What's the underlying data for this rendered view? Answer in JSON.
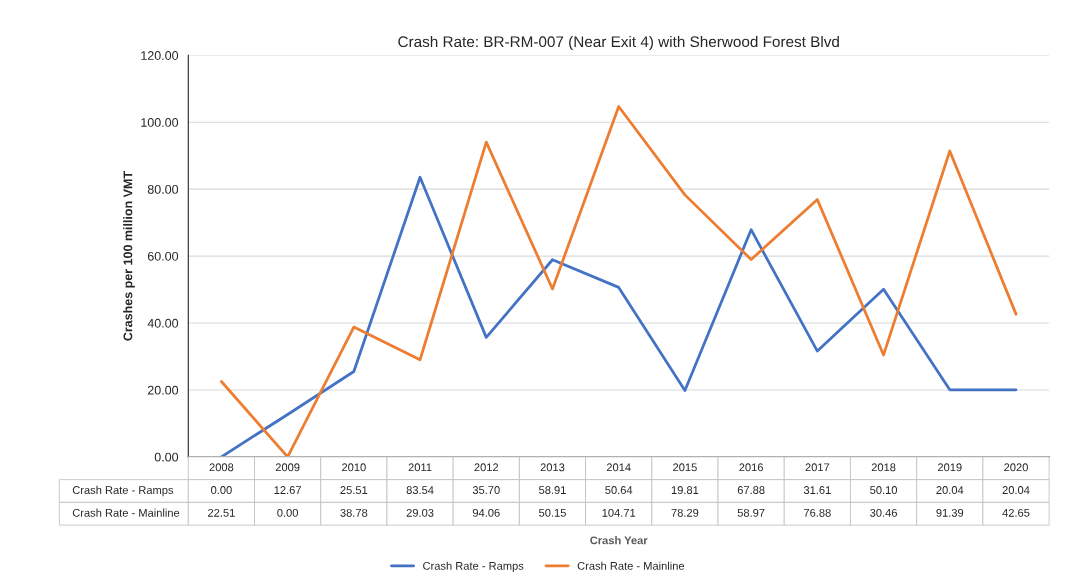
{
  "chart_data": {
    "type": "line",
    "title": "Crash Rate: BR-RM-007 (Near Exit 4) with Sherwood Forest Blvd",
    "annotations": [
      "Crash Year"
    ],
    "ylabel": "Crashes per 100 million VMT",
    "categories": [
      "2008",
      "2009",
      "2010",
      "2011",
      "2012",
      "2013",
      "2014",
      "2015",
      "2016",
      "2017",
      "2018",
      "2019",
      "2020"
    ],
    "series": [
      {
        "name": "Crash Rate - Ramps",
        "color": "#4472c4",
        "values": [
          0.0,
          12.67,
          25.51,
          83.54,
          35.7,
          58.91,
          50.64,
          19.81,
          67.88,
          31.61,
          50.1,
          20.04,
          20.04
        ],
        "value_labels": [
          "0.00",
          "12.67",
          "25.51",
          "83.54",
          "35.70",
          "58.91",
          "50.64",
          "19.81",
          "67.88",
          "31.61",
          "50.10",
          "20.04",
          "20.04"
        ]
      },
      {
        "name": "Crash Rate - Mainline",
        "color": "#ed7d31",
        "values": [
          22.51,
          0.0,
          38.78,
          29.03,
          94.06,
          50.15,
          104.71,
          78.29,
          58.97,
          76.88,
          30.46,
          91.39,
          42.65
        ],
        "value_labels": [
          "22.51",
          "0.00",
          "38.78",
          "29.03",
          "94.06",
          "50.15",
          "104.71",
          "78.29",
          "58.97",
          "76.88",
          "30.46",
          "91.39",
          "42.65"
        ]
      }
    ],
    "ylim": [
      0,
      120
    ],
    "yticks": [
      {
        "value": 0,
        "label": "0.00"
      },
      {
        "value": 20,
        "label": "20.00"
      },
      {
        "value": 40,
        "label": "40.00"
      },
      {
        "value": 60,
        "label": "60.00"
      },
      {
        "value": 80,
        "label": "80.00"
      },
      {
        "value": 100,
        "label": "100.00"
      },
      {
        "value": 120,
        "label": "120.00"
      }
    ],
    "grid": "y",
    "legend": "bottom",
    "marker": "none",
    "line_style": "solid"
  }
}
